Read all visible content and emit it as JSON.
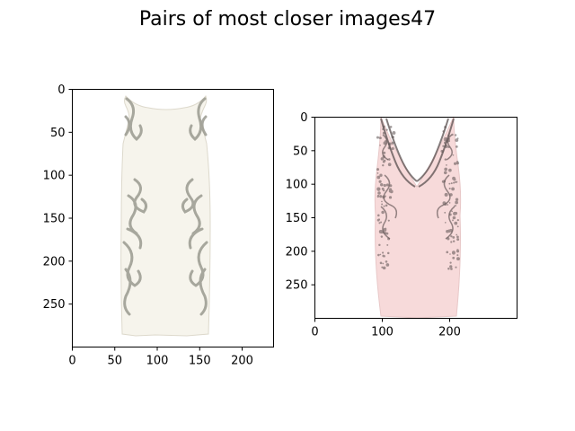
{
  "title": "Pairs of most closer images47",
  "chart_data": [
    {
      "type": "image",
      "subject": "white sleeveless bodycon dress with grey-silver baroque scroll pattern on the sides",
      "image_size": [
        237,
        300
      ],
      "xlim": [
        0,
        237
      ],
      "ylim": [
        300,
        0
      ],
      "xticks": [
        0,
        50,
        100,
        150,
        200
      ],
      "yticks": [
        0,
        50,
        100,
        150,
        200,
        250
      ],
      "colors": {
        "dress": "#f6f4ec",
        "pattern": "#9a9a90"
      }
    },
    {
      "type": "image",
      "subject": "pale pink V-neck bodycon dress with black lace overlay on the bodice and sides",
      "image_size": [
        300,
        300
      ],
      "xlim": [
        0,
        300
      ],
      "ylim": [
        300,
        0
      ],
      "xticks": [
        0,
        100,
        200
      ],
      "yticks": [
        0,
        50,
        100,
        150,
        200,
        250
      ],
      "colors": {
        "dress": "#f7dada",
        "lace": "#5a5050"
      }
    }
  ]
}
